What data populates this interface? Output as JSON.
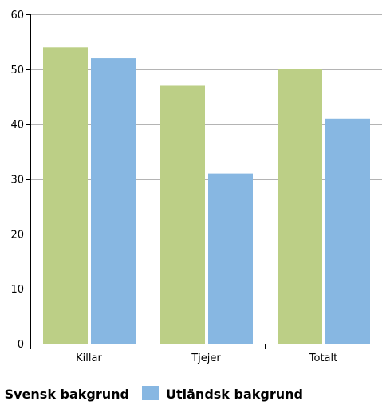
{
  "chart_data": {
    "type": "bar",
    "categories": [
      "Killar",
      "Tjejer",
      "Totalt"
    ],
    "series": [
      {
        "name": "Svensk bakgrund",
        "color": "#bccf86",
        "values": [
          54,
          47,
          50
        ]
      },
      {
        "name": "Utländsk bakgrund",
        "color": "#87b7e2",
        "values": [
          52,
          31,
          41
        ]
      }
    ],
    "ylim": [
      0,
      60
    ],
    "yticks": [
      0,
      10,
      20,
      30,
      40,
      50,
      60
    ],
    "grid": true,
    "legend_position": "bottom"
  }
}
